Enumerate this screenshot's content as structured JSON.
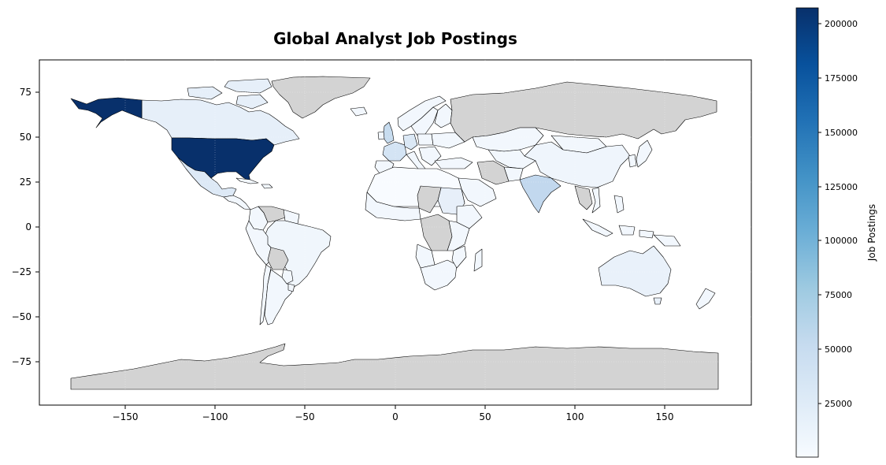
{
  "title": "Global Analyst Job Postings",
  "map": {
    "x_ticks": [
      "−150",
      "−100",
      "−50",
      "0",
      "50",
      "100",
      "150"
    ],
    "y_ticks": [
      "75",
      "50",
      "25",
      "0",
      "−25",
      "−50",
      "−75"
    ],
    "no_data_color": "#d3d3d3",
    "border_color": "#000000"
  },
  "colorbar": {
    "label": "Job Postings",
    "ticks": [
      "200000",
      "175000",
      "150000",
      "125000",
      "100000",
      "75000",
      "50000",
      "25000"
    ],
    "colors": [
      "#f7fbff",
      "#deebf7",
      "#c6dbef",
      "#9ecae1",
      "#6baed6",
      "#4292c6",
      "#2171b5",
      "#08519c",
      "#08306b"
    ],
    "range": [
      1000,
      206000
    ]
  },
  "chart_data": {
    "type": "choropleth",
    "title": "Global Analyst Job Postings",
    "colorbar_label": "Job Postings",
    "value_range": [
      1000,
      206000
    ],
    "xlim": [
      -195,
      200
    ],
    "ylim": [
      -97,
      92
    ],
    "regions": [
      {
        "name": "United States",
        "value": 206000
      },
      {
        "name": "India",
        "value": 45000
      },
      {
        "name": "United Kingdom",
        "value": 25000
      },
      {
        "name": "France",
        "value": 18000
      },
      {
        "name": "Canada",
        "value": 14000
      },
      {
        "name": "Australia",
        "value": 12000
      },
      {
        "name": "Germany",
        "value": 11000
      },
      {
        "name": "Sudan",
        "value": 10000
      },
      {
        "name": "Mexico",
        "value": 8000
      },
      {
        "name": "China",
        "value": 6000
      },
      {
        "name": "Brazil",
        "value": 5000
      },
      {
        "name": "Russia",
        "value": null
      },
      {
        "name": "Antarctica",
        "value": null
      },
      {
        "name": "Greenland",
        "value": null
      }
    ]
  }
}
